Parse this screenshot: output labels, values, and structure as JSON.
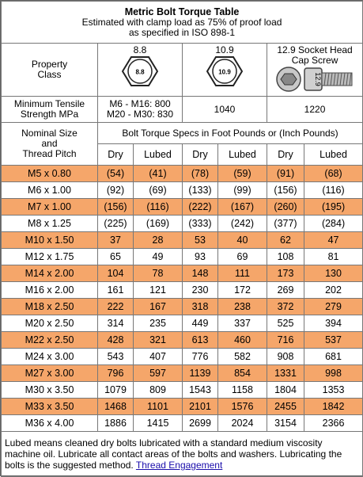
{
  "title": "Metric Bolt Torque Table",
  "subtitle": [
    "Estimated with clamp load as 75% of proof load",
    "as specified in ISO 898-1"
  ],
  "property_class": {
    "label": [
      "Property",
      "Class"
    ],
    "classes": [
      {
        "name": [
          "8.8"
        ],
        "icon": "8.8"
      },
      {
        "name": [
          "10.9"
        ],
        "icon": "10.9"
      },
      {
        "name": [
          "12.9 Socket Head",
          "Cap Screw"
        ],
        "icon": "12.9"
      }
    ]
  },
  "tensile": {
    "label": [
      "Minimum Tensile",
      "Strength MPa"
    ],
    "values": [
      [
        "M6 - M16:  800",
        "M20 - M30:  830"
      ],
      [
        "1040"
      ],
      [
        "1220"
      ]
    ]
  },
  "nominal": {
    "label": [
      "Nominal Size",
      "and",
      "Thread Pitch"
    ],
    "spec_header": "Bolt Torque Specs in Foot Pounds or (Inch Pounds)",
    "columns": [
      "Dry",
      "Lubed",
      "Dry",
      "Lubed",
      "Dry",
      "Lubed"
    ]
  },
  "rows": [
    {
      "size": "M5 x 0.80",
      "values": [
        "(54)",
        "(41)",
        "(78)",
        "(59)",
        "(91)",
        "(68)"
      ]
    },
    {
      "size": "M6 x 1.00",
      "values": [
        "(92)",
        "(69)",
        "(133)",
        "(99)",
        "(156)",
        "(116)"
      ]
    },
    {
      "size": "M7 x 1.00",
      "values": [
        "(156)",
        "(116)",
        "(222)",
        "(167)",
        "(260)",
        "(195)"
      ]
    },
    {
      "size": "M8 x 1.25",
      "values": [
        "(225)",
        "(169)",
        "(333)",
        "(242)",
        "(377)",
        "(284)"
      ]
    },
    {
      "size": "M10 x 1.50",
      "values": [
        "37",
        "28",
        "53",
        "40",
        "62",
        "47"
      ]
    },
    {
      "size": "M12 x 1.75",
      "values": [
        "65",
        "49",
        "93",
        "69",
        "108",
        "81"
      ]
    },
    {
      "size": "M14 x 2.00",
      "values": [
        "104",
        "78",
        "148",
        "111",
        "173",
        "130"
      ]
    },
    {
      "size": "M16 x 2.00",
      "values": [
        "161",
        "121",
        "230",
        "172",
        "269",
        "202"
      ]
    },
    {
      "size": "M18 x 2.50",
      "values": [
        "222",
        "167",
        "318",
        "238",
        "372",
        "279"
      ]
    },
    {
      "size": "M20 x 2.50",
      "values": [
        "314",
        "235",
        "449",
        "337",
        "525",
        "394"
      ]
    },
    {
      "size": "M22 x 2.50",
      "values": [
        "428",
        "321",
        "613",
        "460",
        "716",
        "537"
      ]
    },
    {
      "size": "M24 x 3.00",
      "values": [
        "543",
        "407",
        "776",
        "582",
        "908",
        "681"
      ]
    },
    {
      "size": "M27 x 3.00",
      "values": [
        "796",
        "597",
        "1139",
        "854",
        "1331",
        "998"
      ]
    },
    {
      "size": "M30 x 3.50",
      "values": [
        "1079",
        "809",
        "1543",
        "1158",
        "1804",
        "1353"
      ]
    },
    {
      "size": "M33 x 3.50",
      "values": [
        "1468",
        "1101",
        "2101",
        "1576",
        "2455",
        "1842"
      ]
    },
    {
      "size": "M36 x 4.00",
      "values": [
        "1886",
        "1415",
        "2699",
        "2024",
        "3154",
        "2366"
      ]
    }
  ],
  "footnote": {
    "text": "Lubed means cleaned dry bolts lubricated with a standard medium viscosity machine oil. Lubricate all contact areas of the bolts and washers. Lubricating the bolts is the suggested method.",
    "link": "Thread Engagement"
  }
}
